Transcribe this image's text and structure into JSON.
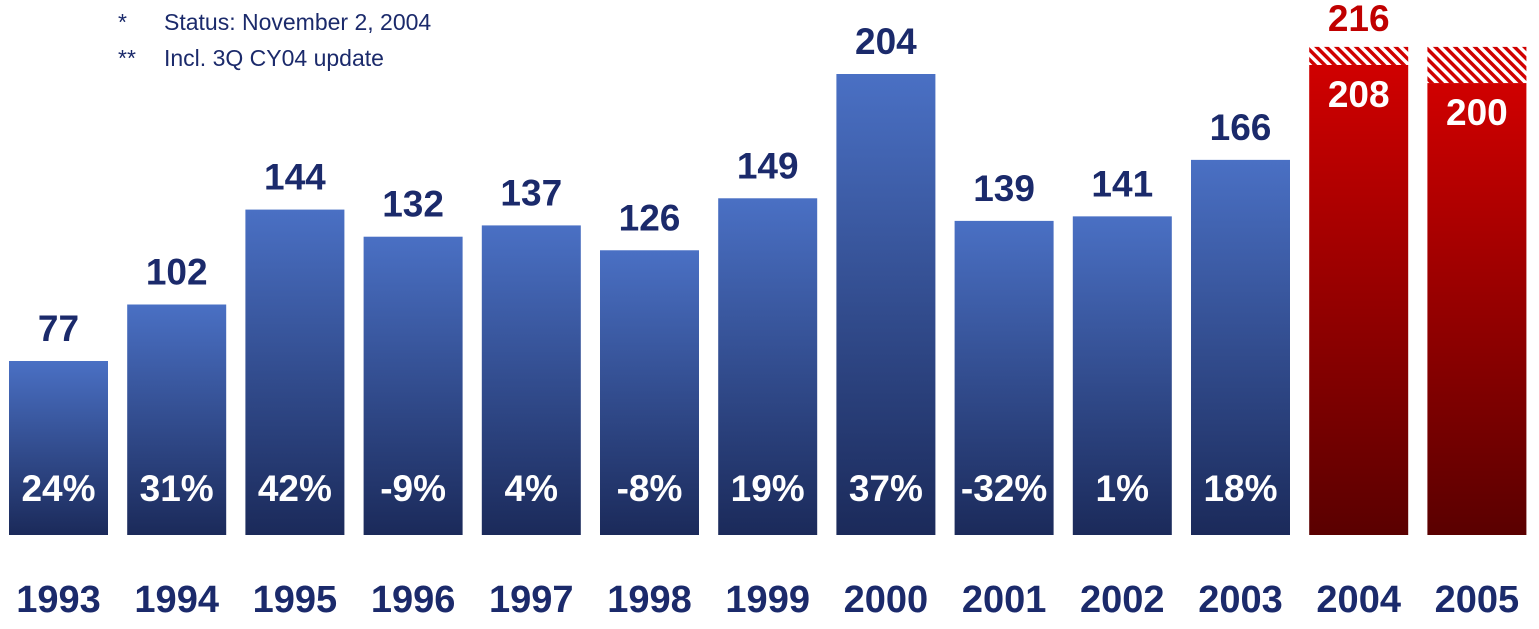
{
  "notes": [
    {
      "mark": "*",
      "text": "Status: November 2, 2004"
    },
    {
      "mark": "**",
      "text": "Incl. 3Q CY04 update"
    }
  ],
  "colors": {
    "actual_top": "#4a70c4",
    "actual_bottom": "#1b2a5a",
    "forecast_top": "#d00000",
    "forecast_bottom": "#5a0000",
    "actual_label": "#1b2a6b",
    "forecast_label": "#c00000"
  },
  "chart_data": {
    "type": "bar",
    "categories": [
      "1993",
      "1994",
      "1995",
      "1996",
      "1997",
      "1998",
      "1999",
      "2000",
      "2001",
      "2002",
      "2003",
      "2004",
      "2005"
    ],
    "values": [
      77,
      102,
      144,
      132,
      137,
      126,
      149,
      204,
      139,
      141,
      166,
      208,
      200
    ],
    "value_labels": [
      "77",
      "102",
      "144",
      "132",
      "137",
      "126",
      "149",
      "204",
      "139",
      "141",
      "166",
      "208",
      "200"
    ],
    "growth_labels": [
      "24%",
      "31%",
      "42%",
      "-9%",
      "4%",
      "-8%",
      "19%",
      "37%",
      "-32%",
      "1%",
      "18%",
      "",
      ""
    ],
    "forecast_flags": [
      false,
      false,
      false,
      false,
      false,
      false,
      false,
      false,
      false,
      false,
      false,
      true,
      true
    ],
    "hatched_extension": [
      {
        "category": "2004",
        "to_value": 216,
        "label": "216"
      },
      {
        "category": "2005",
        "to_value": 216,
        "label": ""
      }
    ],
    "ylim": [
      0,
      216
    ]
  }
}
